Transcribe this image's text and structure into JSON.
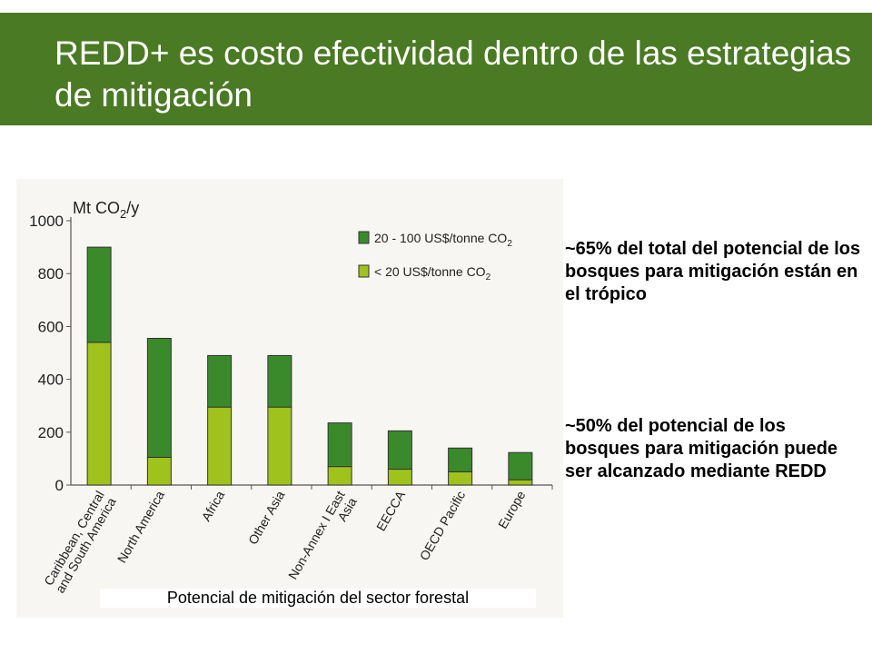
{
  "slide": {
    "title": "REDD+ es costo efectividad dentro de las estrategias de mitigación",
    "caption": "Potencial de mitigación del sector forestal",
    "bullet_1": "~65% del total del potencial de los bosques para mitigación están en el trópico",
    "bullet_2": "~50% del potencial de los bosques para mitigación puede ser alcanzado mediante REDD",
    "title_bar_color": "#4a7a23"
  },
  "chart_data": {
    "type": "bar",
    "stacked": true,
    "y_unit_prefix": "Mt CO",
    "y_unit_sub": "2",
    "y_unit_suffix": "/y",
    "ylim": [
      0,
      1000
    ],
    "yticks": [
      "0",
      "200",
      "400",
      "600",
      "800",
      "1000"
    ],
    "categories": [
      "Caribbean, Central and South America",
      "North America",
      "Africa",
      "Other Asia",
      "Non-Annex I East Asia",
      "EECCA",
      "OECD Pacific",
      "Europe"
    ],
    "series": [
      {
        "name": "< 20 US$/tonne CO",
        "name_sub": "2",
        "color": "#9fc31c",
        "values": [
          540,
          105,
          295,
          295,
          70,
          60,
          50,
          20
        ]
      },
      {
        "name": "20 - 100 US$/tonne CO",
        "name_sub": "2",
        "color": "#3a8a2c",
        "values": [
          360,
          450,
          195,
          195,
          165,
          145,
          90,
          103
        ]
      }
    ],
    "legend_position": "top-right",
    "grid": false
  }
}
